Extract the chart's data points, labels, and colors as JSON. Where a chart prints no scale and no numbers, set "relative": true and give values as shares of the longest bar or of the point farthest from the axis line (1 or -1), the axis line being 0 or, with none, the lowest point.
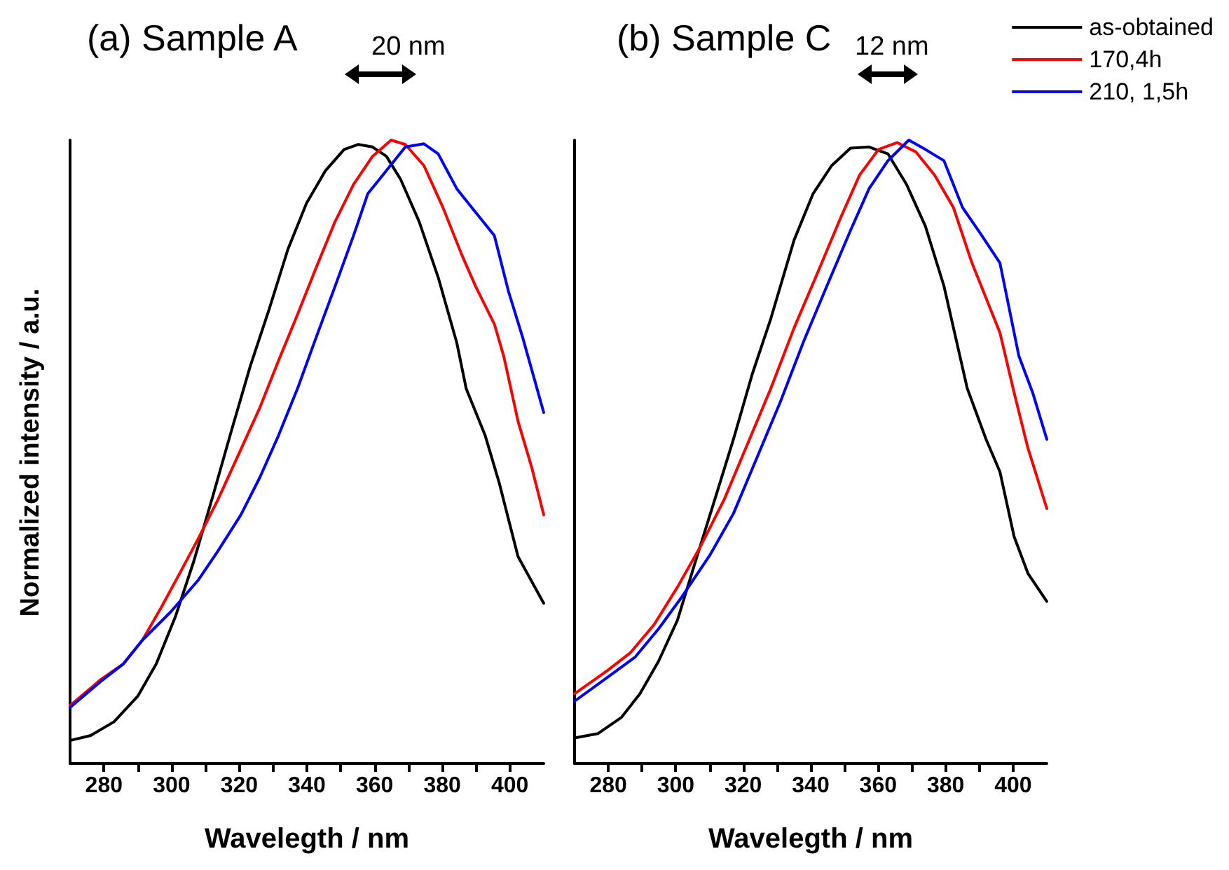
{
  "chart_data": [
    {
      "type": "line",
      "title": "(a) Sample A",
      "xlabel": "Wavelegth / nm",
      "ylabel": "Normalized intensity / a.u.",
      "relative": true,
      "tick_labels": "x",
      "marker": "none",
      "line_style": "solid",
      "grid": false,
      "legend": false,
      "annotations": [
        "20 nm"
      ],
      "xlim": [
        270,
        410
      ],
      "xticks": [
        280,
        {
          "value": 290,
          "label": null
        },
        300,
        {
          "value": 310,
          "label": null
        },
        320,
        {
          "value": 330,
          "label": null
        },
        340,
        {
          "value": 350,
          "label": null
        },
        360,
        {
          "value": 370,
          "label": null
        },
        380,
        {
          "value": 390,
          "label": null
        },
        400
      ],
      "series": [
        {
          "color": "#000000",
          "x": [
            270,
            276.1,
            283,
            290,
            295.5,
            301.1,
            306.6,
            312.2,
            317.7,
            323.3,
            328.8,
            334.4,
            339.9,
            345.5,
            351,
            355.2,
            359.4,
            363.5,
            367.7,
            373.2,
            378.8,
            384.3,
            387.1,
            392.7,
            396.8,
            402.4,
            410
          ],
          "values": [
            0.037,
            0.045,
            0.067,
            0.108,
            0.16,
            0.235,
            0.325,
            0.429,
            0.534,
            0.638,
            0.728,
            0.825,
            0.899,
            0.951,
            0.985,
            0.993,
            0.989,
            0.974,
            0.937,
            0.869,
            0.78,
            0.675,
            0.601,
            0.526,
            0.451,
            0.332,
            0.257
          ]
        },
        {
          "color": "#ff0000",
          "x": [
            270,
            278.9,
            285.8,
            291.4,
            296.9,
            302.5,
            308,
            313.6,
            320.5,
            326.1,
            331.6,
            337.2,
            342.7,
            348.3,
            353.8,
            359.4,
            364.9,
            369.1,
            374.6,
            380.2,
            385.7,
            389.9,
            395.4,
            398.2,
            402.4,
            406.5,
            410
          ],
          "values": [
            0.093,
            0.134,
            0.16,
            0.198,
            0.25,
            0.306,
            0.362,
            0.422,
            0.504,
            0.571,
            0.646,
            0.72,
            0.795,
            0.869,
            0.929,
            0.974,
            1,
            0.993,
            0.959,
            0.892,
            0.817,
            0.765,
            0.705,
            0.653,
            0.549,
            0.474,
            0.399
          ]
        },
        {
          "color": "#0000ff",
          "x": [
            270,
            278.9,
            285.8,
            291.4,
            299.7,
            308,
            313.6,
            320.5,
            326.1,
            331.6,
            337.2,
            342.7,
            348.3,
            353.8,
            358,
            363.5,
            369.1,
            374.6,
            378.8,
            384.3,
            389.9,
            395.4,
            399.6,
            403.8,
            410
          ],
          "values": [
            0.09,
            0.131,
            0.16,
            0.198,
            0.243,
            0.295,
            0.34,
            0.399,
            0.459,
            0.526,
            0.601,
            0.683,
            0.765,
            0.847,
            0.914,
            0.951,
            0.989,
            0.994,
            0.978,
            0.922,
            0.884,
            0.847,
            0.757,
            0.683,
            0.563
          ]
        }
      ]
    },
    {
      "type": "line",
      "title": "(b) Sample C",
      "xlabel": "Wavelegth / nm",
      "relative": true,
      "tick_labels": "x",
      "marker": "none",
      "line_style": "solid",
      "grid": false,
      "legend": "top right",
      "annotations": [
        "12 nm"
      ],
      "xlim": [
        270,
        410
      ],
      "xticks": [
        280,
        {
          "value": 290,
          "label": null
        },
        300,
        {
          "value": 310,
          "label": null
        },
        320,
        {
          "value": 330,
          "label": null
        },
        340,
        {
          "value": 350,
          "label": null
        },
        360,
        {
          "value": 370,
          "label": null
        },
        380,
        {
          "value": 390,
          "label": null
        },
        400
      ],
      "series": [
        {
          "name": "as-obtained",
          "color": "#000000",
          "x": [
            270,
            276.9,
            283.9,
            289.4,
            294.9,
            300.5,
            306,
            311.6,
            317.1,
            322.7,
            328.2,
            335.1,
            340.7,
            346.2,
            351.8,
            357.3,
            362.9,
            368.4,
            374,
            379.5,
            386.4,
            392,
            396.1,
            400.3,
            404.4,
            410
          ],
          "values": [
            0.041,
            0.048,
            0.074,
            0.112,
            0.164,
            0.23,
            0.327,
            0.424,
            0.52,
            0.625,
            0.714,
            0.84,
            0.914,
            0.959,
            0.987,
            0.989,
            0.978,
            0.929,
            0.862,
            0.766,
            0.602,
            0.52,
            0.468,
            0.364,
            0.305,
            0.26
          ]
        },
        {
          "name": "170,4h",
          "color": "#ff0000",
          "x": [
            270,
            279.7,
            286.6,
            293.6,
            300.5,
            307.4,
            314.4,
            321.3,
            328.2,
            335.1,
            342.1,
            349,
            354.5,
            360.1,
            365.6,
            371.2,
            376.7,
            382.3,
            387.8,
            396.1,
            400.3,
            404.4,
            410
          ],
          "values": [
            0.112,
            0.149,
            0.178,
            0.223,
            0.283,
            0.349,
            0.424,
            0.513,
            0.602,
            0.699,
            0.788,
            0.877,
            0.944,
            0.985,
            0.996,
            0.981,
            0.944,
            0.892,
            0.803,
            0.691,
            0.595,
            0.506,
            0.409
          ]
        },
        {
          "name": "210, 1,5h",
          "color": "#0000ff",
          "x": [
            270,
            279.7,
            288,
            294.9,
            301.9,
            310.2,
            317.1,
            324.1,
            331,
            337.9,
            344.8,
            351.8,
            357.3,
            362.9,
            369.1,
            374,
            379.5,
            385,
            390.6,
            396.1,
            401.7,
            405.8,
            410
          ],
          "values": [
            0.1,
            0.138,
            0.171,
            0.216,
            0.268,
            0.335,
            0.401,
            0.491,
            0.58,
            0.677,
            0.766,
            0.855,
            0.922,
            0.967,
            1,
            0.985,
            0.967,
            0.892,
            0.848,
            0.803,
            0.654,
            0.595,
            0.52
          ]
        }
      ]
    }
  ]
}
